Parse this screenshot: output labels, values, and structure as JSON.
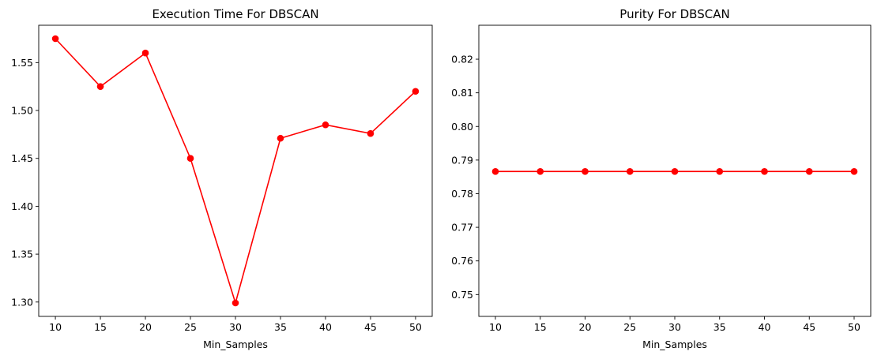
{
  "chart_data": [
    {
      "type": "line",
      "title": "Execution Time For DBSCAN",
      "xlabel": "Min_Samples",
      "ylabel": "",
      "x": [
        10,
        15,
        20,
        25,
        30,
        35,
        40,
        45,
        50
      ],
      "series": [
        {
          "values": [
            1.575,
            1.525,
            1.56,
            1.45,
            1.299,
            1.471,
            1.485,
            1.476,
            1.52
          ],
          "color": "#ff0000",
          "marker": "circle"
        }
      ],
      "xticks": [
        "10",
        "15",
        "20",
        "25",
        "30",
        "35",
        "40",
        "45",
        "50"
      ],
      "yticks": [
        "1.30",
        "1.35",
        "1.40",
        "1.45",
        "1.50",
        "1.55"
      ],
      "ylim": [
        1.285,
        1.589
      ],
      "grid": false,
      "legend": "none"
    },
    {
      "type": "line",
      "title": "Purity For DBSCAN",
      "xlabel": "Min_Samples",
      "ylabel": "",
      "x": [
        10,
        15,
        20,
        25,
        30,
        35,
        40,
        45,
        50
      ],
      "series": [
        {
          "values": [
            0.7866,
            0.7866,
            0.7866,
            0.7866,
            0.7866,
            0.7866,
            0.7866,
            0.7866,
            0.7866
          ],
          "color": "#ff0000",
          "marker": "circle"
        }
      ],
      "xticks": [
        "10",
        "15",
        "20",
        "25",
        "30",
        "35",
        "40",
        "45",
        "50"
      ],
      "yticks": [
        "0.75",
        "0.76",
        "0.77",
        "0.78",
        "0.79",
        "0.80",
        "0.81",
        "0.82"
      ],
      "ylim": [
        0.7435,
        0.8301
      ],
      "grid": false,
      "legend": "none"
    }
  ]
}
